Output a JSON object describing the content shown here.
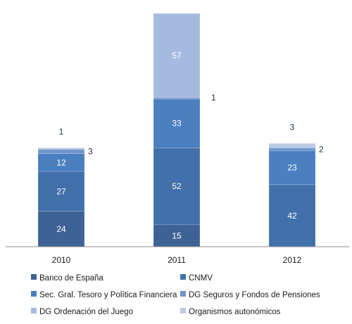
{
  "chart_data": {
    "type": "bar",
    "stacked": true,
    "title": "",
    "xlabel": "",
    "ylabel": "",
    "grid": false,
    "legend_position": "bottom",
    "categories": [
      "2010",
      "2011",
      "2012"
    ],
    "series": [
      {
        "name": "Banco de España",
        "color": "#3e6296",
        "values": [
          24,
          15,
          0
        ]
      },
      {
        "name": "CNMV",
        "color": "#4270aa",
        "values": [
          27,
          52,
          42
        ]
      },
      {
        "name": "Sec. Gral. Tesoro y Política Financiera",
        "color": "#4a7fc0",
        "values": [
          12,
          33,
          23
        ]
      },
      {
        "name": "DG Seguros y Fondos de Pensiones",
        "color": "#6f95ce",
        "values": [
          3,
          1,
          2
        ]
      },
      {
        "name": "DG Ordenación del Juego",
        "color": "#a4badf",
        "values": [
          0,
          57,
          0
        ]
      },
      {
        "name": "Organismos autonómicos",
        "color": "#bccbe5",
        "values": [
          1,
          0,
          3
        ]
      }
    ],
    "data_labels": [
      {
        "category": "2010",
        "series": "Banco de España",
        "text": "24",
        "placement": "inside"
      },
      {
        "category": "2010",
        "series": "CNMV",
        "text": "27",
        "placement": "inside"
      },
      {
        "category": "2010",
        "series": "Sec. Gral. Tesoro y Política Financiera",
        "text": "12",
        "placement": "inside"
      },
      {
        "category": "2010",
        "series": "DG Seguros y Fondos de Pensiones",
        "text": "3",
        "placement": "right"
      },
      {
        "category": "2010",
        "series": "Organismos autonómicos",
        "text": "1",
        "placement": "above"
      },
      {
        "category": "2011",
        "series": "Banco de España",
        "text": "15",
        "placement": "inside"
      },
      {
        "category": "2011",
        "series": "CNMV",
        "text": "52",
        "placement": "inside"
      },
      {
        "category": "2011",
        "series": "Sec. Gral. Tesoro y Política Financiera",
        "text": "33",
        "placement": "inside"
      },
      {
        "category": "2011",
        "series": "DG Seguros y Fondos de Pensiones",
        "text": "1",
        "placement": "right"
      },
      {
        "category": "2011",
        "series": "DG Ordenación del Juego",
        "text": "57",
        "placement": "inside"
      },
      {
        "category": "2012",
        "series": "CNMV",
        "text": "42",
        "placement": "inside"
      },
      {
        "category": "2012",
        "series": "Sec. Gral. Tesoro y Política Financiera",
        "text": "23",
        "placement": "inside"
      },
      {
        "category": "2012",
        "series": "DG Seguros y Fondos de Pensiones",
        "text": "2",
        "placement": "right"
      },
      {
        "category": "2012",
        "series": "Organismos autonómicos",
        "text": "3",
        "placement": "above"
      }
    ],
    "colors": {
      "axis": "#8c8c8c",
      "label_dark": "#1f2f4a",
      "label_light": "#ffffff",
      "legend_text": "#1a1a1a"
    }
  }
}
